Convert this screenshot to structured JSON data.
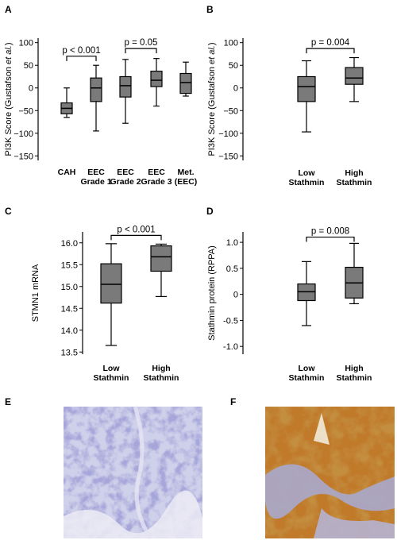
{
  "colors": {
    "box_fill": "#7a7a7a",
    "axis": "#000000",
    "ihc_low": "#b8b8dc",
    "ihc_high": "#b06a1e"
  },
  "panel_labels": {
    "A": "A",
    "B": "B",
    "C": "C",
    "D": "D",
    "E": "E",
    "F": "F"
  },
  "chart_data": [
    {
      "panel": "A",
      "type": "box",
      "ylabel_parts": [
        "PI3K Score (Gustafson ",
        "et al.",
        ")"
      ],
      "ylim": [
        -160,
        110
      ],
      "yticks": [
        100,
        50,
        0,
        -50,
        -100,
        -150
      ],
      "ytick_labels": [
        "100",
        "50",
        "0",
        "−50",
        "−100",
        "−150"
      ],
      "categories": [
        [
          "CAH"
        ],
        [
          "EEC",
          "Grade 1"
        ],
        [
          "EEC",
          "Grade 2"
        ],
        [
          "EEC",
          "Grade 3"
        ],
        [
          "Met.",
          "(EEC)"
        ]
      ],
      "boxes": [
        {
          "min": -65,
          "q1": -57,
          "median": -45,
          "q3": -33,
          "max": 0
        },
        {
          "min": -95,
          "q1": -30,
          "median": 0,
          "q3": 22,
          "max": 50
        },
        {
          "min": -78,
          "q1": -20,
          "median": 5,
          "q3": 25,
          "max": 63
        },
        {
          "min": -40,
          "q1": 3,
          "median": 17,
          "q3": 37,
          "max": 65
        },
        {
          "min": -18,
          "q1": -12,
          "median": 12,
          "q3": 32,
          "max": 57
        }
      ],
      "brackets": [
        {
          "from": 0,
          "to": 1,
          "y": 70,
          "label": "p < 0.001"
        },
        {
          "from": 2,
          "to": 3,
          "y": 87,
          "label": "p = 0.05"
        }
      ]
    },
    {
      "panel": "B",
      "type": "box",
      "ylabel_parts": [
        "PI3K Score (Gustafson ",
        "et al.",
        ")"
      ],
      "ylim": [
        -160,
        110
      ],
      "yticks": [
        100,
        50,
        0,
        -50,
        -100,
        -150
      ],
      "ytick_labels": [
        "100",
        "50",
        "0",
        "−50",
        "−100",
        "−150"
      ],
      "categories": [
        [
          "Low",
          "Stathmin"
        ],
        [
          "High",
          "Stathmin"
        ]
      ],
      "boxes": [
        {
          "min": -97,
          "q1": -30,
          "median": 3,
          "q3": 25,
          "max": 60
        },
        {
          "min": -30,
          "q1": 8,
          "median": 22,
          "q3": 45,
          "max": 67
        }
      ],
      "brackets": [
        {
          "from": 0,
          "to": 1,
          "y": 87,
          "label": "p = 0.004"
        }
      ]
    },
    {
      "panel": "C",
      "type": "box",
      "ylabel_parts": [
        "STMN1 mRNA"
      ],
      "ylim": [
        13.45,
        16.25
      ],
      "yticks": [
        16.0,
        15.5,
        15.0,
        14.5,
        14.0,
        13.5
      ],
      "ytick_labels": [
        "16.0",
        "15.5",
        "15.0",
        "14.5",
        "14.0",
        "13.5"
      ],
      "categories": [
        [
          "Low",
          "Stathmin"
        ],
        [
          "High",
          "Stathmin"
        ]
      ],
      "boxes": [
        {
          "min": 13.65,
          "q1": 14.62,
          "median": 15.05,
          "q3": 15.52,
          "max": 15.98
        },
        {
          "min": 14.77,
          "q1": 15.35,
          "median": 15.68,
          "q3": 15.93,
          "max": 15.97
        }
      ],
      "brackets": [
        {
          "from": 0,
          "to": 1,
          "y": 16.17,
          "label": "p < 0.001"
        }
      ]
    },
    {
      "panel": "D",
      "type": "box",
      "ylabel_parts": [
        "Stathmin protein (RPPA)"
      ],
      "ylim": [
        -1.15,
        1.2
      ],
      "yticks": [
        1.0,
        0.5,
        0.0,
        -0.5,
        -1.0
      ],
      "ytick_labels": [
        "1.0",
        "0.5",
        "0",
        "-0.5",
        "-1.0"
      ],
      "categories": [
        [
          "Low",
          "Stathmin"
        ],
        [
          "High",
          "Stathmin"
        ]
      ],
      "boxes": [
        {
          "min": -0.6,
          "q1": -0.12,
          "median": 0.05,
          "q3": 0.2,
          "max": 0.63
        },
        {
          "min": -0.18,
          "q1": -0.07,
          "median": 0.22,
          "q3": 0.52,
          "max": 0.98
        }
      ],
      "brackets": [
        {
          "from": 0,
          "to": 1,
          "y": 1.1,
          "label": "p = 0.008"
        }
      ]
    }
  ]
}
